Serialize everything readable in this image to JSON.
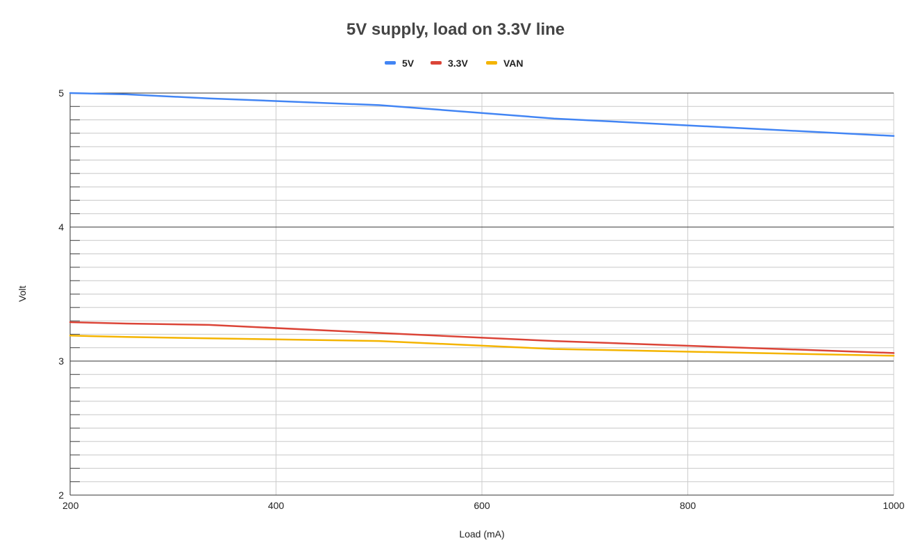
{
  "chart_data": {
    "type": "line",
    "title": "5V supply, load on 3.3V line",
    "xlabel": "Load (mA)",
    "ylabel": "Volt",
    "xlim": [
      200,
      1000
    ],
    "ylim": [
      2,
      5
    ],
    "x_ticks": [
      "200",
      "400",
      "600",
      "800",
      "1000"
    ],
    "y_ticks": [
      "2",
      "3",
      "4",
      "5"
    ],
    "grid": true,
    "legend_position": "top",
    "series": [
      {
        "name": "5V",
        "color": "#4285f4",
        "x": [
          200,
          255,
          335,
          500,
          670,
          1000
        ],
        "y": [
          5.0,
          4.99,
          4.96,
          4.91,
          4.81,
          4.68
        ]
      },
      {
        "name": "3.3V",
        "color": "#db4437",
        "x": [
          200,
          255,
          335,
          500,
          670,
          1000
        ],
        "y": [
          3.29,
          3.28,
          3.27,
          3.21,
          3.15,
          3.06
        ]
      },
      {
        "name": "VAN",
        "color": "#f4b400",
        "x": [
          200,
          255,
          335,
          500,
          670,
          1000
        ],
        "y": [
          3.19,
          3.18,
          3.17,
          3.15,
          3.09,
          3.04
        ]
      }
    ]
  }
}
